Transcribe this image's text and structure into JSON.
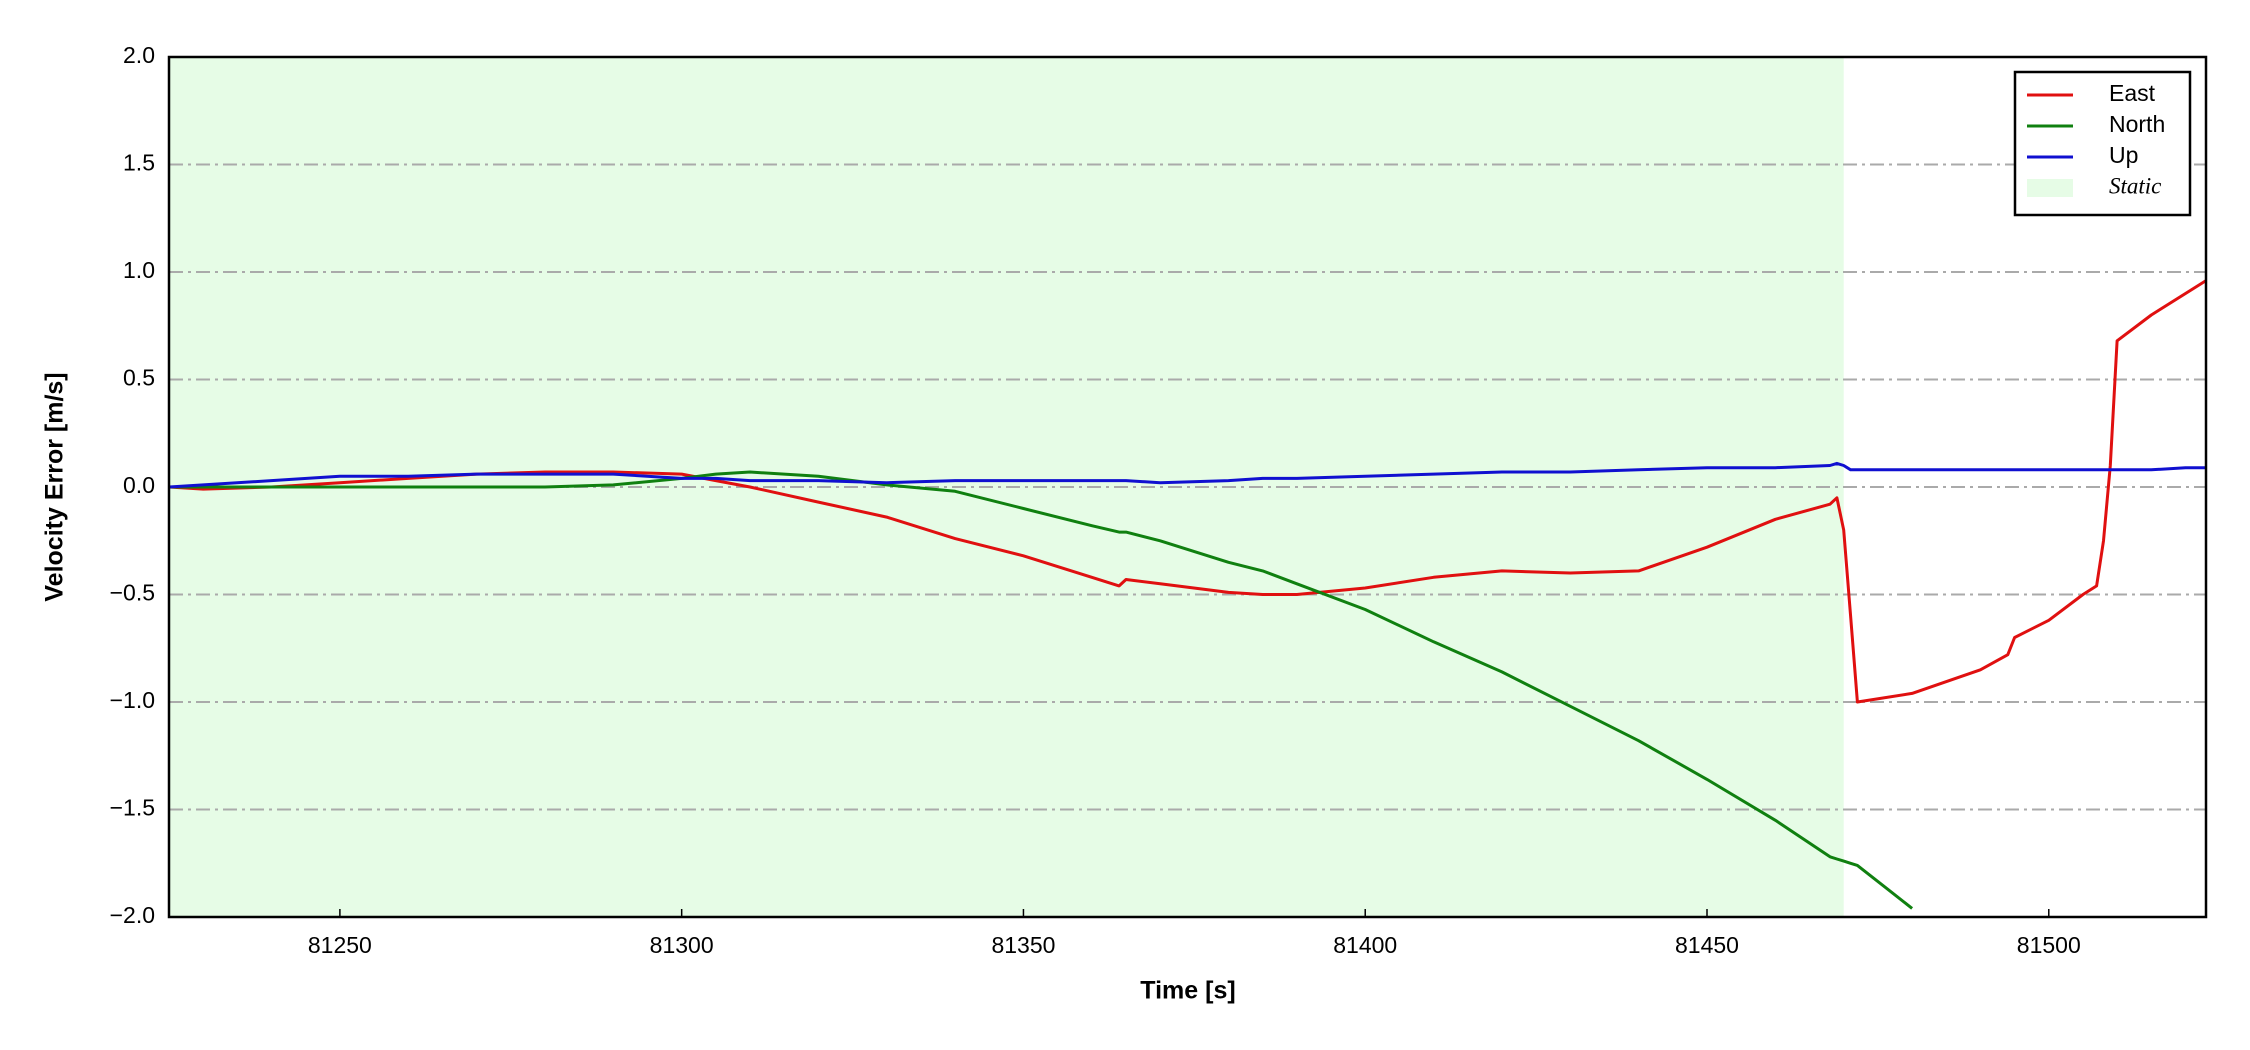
{
  "chart_data": {
    "type": "line",
    "xlabel": "Time [s]",
    "ylabel": "Velocity Error [m/s]",
    "x": [
      81225,
      81230,
      81240,
      81250,
      81260,
      81270,
      81280,
      81290,
      81300,
      81305,
      81310,
      81320,
      81330,
      81340,
      81350,
      81360,
      81364,
      81365,
      81370,
      81380,
      81385,
      81390,
      81400,
      81410,
      81420,
      81430,
      81440,
      81450,
      81460,
      81468,
      81469,
      81470,
      81471,
      81472,
      81480,
      81490,
      81494,
      81495,
      81500,
      81505,
      81507,
      81508,
      81509,
      81510,
      81515,
      81520,
      81523
    ],
    "series": [
      {
        "name": "East",
        "color": "#e01010",
        "values": [
          0.0,
          -0.01,
          0.0,
          0.02,
          0.04,
          0.06,
          0.07,
          0.07,
          0.06,
          0.03,
          0.0,
          -0.07,
          -0.14,
          -0.24,
          -0.32,
          -0.42,
          -0.46,
          -0.43,
          -0.45,
          -0.49,
          -0.5,
          -0.5,
          -0.47,
          -0.42,
          -0.39,
          -0.4,
          -0.39,
          -0.28,
          -0.15,
          -0.08,
          -0.05,
          -0.2,
          -0.6,
          -1.0,
          -0.96,
          -0.85,
          -0.78,
          -0.7,
          -0.62,
          -0.5,
          -0.46,
          -0.25,
          0.1,
          0.68,
          0.8,
          0.9,
          0.96
        ]
      },
      {
        "name": "North",
        "color": "#108010",
        "values": [
          0.0,
          0.0,
          0.0,
          0.0,
          0.0,
          0.0,
          0.0,
          0.01,
          0.04,
          0.06,
          0.07,
          0.05,
          0.01,
          -0.02,
          -0.1,
          -0.18,
          -0.21,
          -0.21,
          -0.25,
          -0.35,
          -0.39,
          -0.45,
          -0.57,
          -0.72,
          -0.86,
          -1.02,
          -1.18,
          -1.36,
          -1.55,
          -1.72,
          -1.73,
          -1.74,
          -1.75,
          -1.76,
          -1.96,
          null,
          null,
          null,
          null,
          null,
          null,
          null,
          null,
          null,
          null,
          null,
          null
        ]
      },
      {
        "name": "Up",
        "color": "#1010d0",
        "values": [
          0.0,
          0.01,
          0.03,
          0.05,
          0.05,
          0.06,
          0.06,
          0.06,
          0.04,
          0.04,
          0.03,
          0.03,
          0.02,
          0.03,
          0.03,
          0.03,
          0.03,
          0.03,
          0.02,
          0.03,
          0.04,
          0.04,
          0.05,
          0.06,
          0.07,
          0.07,
          0.08,
          0.09,
          0.09,
          0.1,
          0.11,
          0.1,
          0.08,
          0.08,
          0.08,
          0.08,
          0.08,
          0.08,
          0.08,
          0.08,
          0.08,
          0.08,
          0.08,
          0.08,
          0.08,
          0.09,
          0.09
        ]
      }
    ],
    "shaded": {
      "label": "Static",
      "range": [
        81225,
        81470
      ],
      "color": "#e6fce6"
    },
    "xlim": [
      81225,
      81523
    ],
    "xticks": [
      81250,
      81300,
      81350,
      81400,
      81450,
      81500
    ],
    "ylim": [
      -2,
      2
    ],
    "yticks": [
      {
        "value": -2,
        "label": "−2.0"
      },
      {
        "value": -1.5,
        "label": "−1.5"
      },
      {
        "value": -1,
        "label": "−1.0"
      },
      {
        "value": -0.5,
        "label": "−0.5"
      },
      {
        "value": 0,
        "label": "0.0"
      },
      0.5,
      {
        "value": 1,
        "label": "1.0"
      },
      1.5,
      {
        "value": 2,
        "label": "2.0"
      }
    ],
    "grid": true,
    "legend": "upper right"
  }
}
